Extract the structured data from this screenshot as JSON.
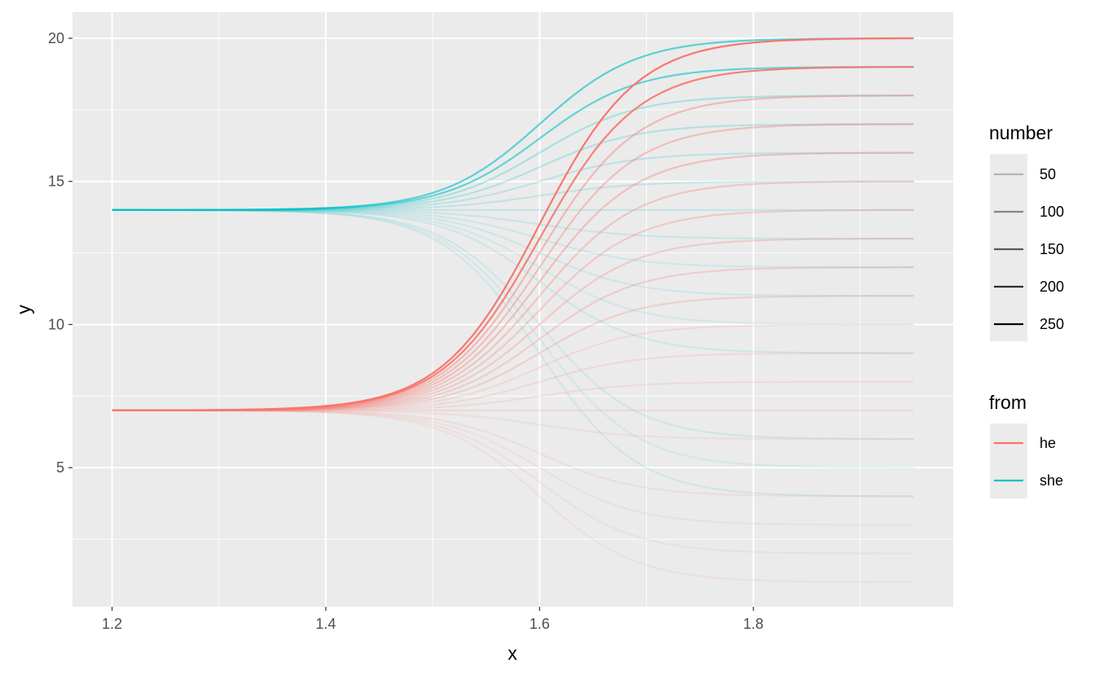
{
  "chart_data": {
    "type": "line",
    "title": "",
    "xlabel": "x",
    "ylabel": "y",
    "xlim": [
      1.163,
      1.987
    ],
    "ylim": [
      0.14,
      20.91
    ],
    "x_ticks": [
      1.2,
      1.4,
      1.6,
      1.8
    ],
    "x_tick_labels": [
      "1.2",
      "1.4",
      "1.6",
      "1.8"
    ],
    "y_ticks": [
      5,
      10,
      15,
      20
    ],
    "y_tick_labels": [
      "5",
      "10",
      "15",
      "20"
    ],
    "grid": true,
    "curve": {
      "form": "sigmoid",
      "x_start": 1.2,
      "x_end": 1.95,
      "midpoint": 1.6,
      "steepness": 22
    },
    "legend_number": {
      "title": "number",
      "position": "right",
      "items": [
        {
          "label": "50",
          "value": 50
        },
        {
          "label": "100",
          "value": 100
        },
        {
          "label": "150",
          "value": 150
        },
        {
          "label": "200",
          "value": 200
        },
        {
          "label": "250",
          "value": 250
        }
      ]
    },
    "legend_from": {
      "title": "from",
      "position": "right",
      "items": [
        {
          "label": "he",
          "color": "#F8766D"
        },
        {
          "label": "she",
          "color": "#00BFC4"
        }
      ]
    },
    "series": [
      {
        "from": "he",
        "start": 7,
        "end": 20,
        "number": 250
      },
      {
        "from": "he",
        "start": 7,
        "end": 19,
        "number": 230
      },
      {
        "from": "he",
        "start": 7,
        "end": 18,
        "number": 100
      },
      {
        "from": "he",
        "start": 7,
        "end": 17,
        "number": 90
      },
      {
        "from": "he",
        "start": 7,
        "end": 16,
        "number": 85
      },
      {
        "from": "he",
        "start": 7,
        "end": 15,
        "number": 75
      },
      {
        "from": "he",
        "start": 7,
        "end": 14,
        "number": 65
      },
      {
        "from": "he",
        "start": 7,
        "end": 13,
        "number": 60
      },
      {
        "from": "he",
        "start": 7,
        "end": 12,
        "number": 55
      },
      {
        "from": "he",
        "start": 7,
        "end": 11,
        "number": 50
      },
      {
        "from": "he",
        "start": 7,
        "end": 10,
        "number": 30
      },
      {
        "from": "he",
        "start": 7,
        "end": 9,
        "number": 30
      },
      {
        "from": "he",
        "start": 7,
        "end": 8,
        "number": 25
      },
      {
        "from": "he",
        "start": 7,
        "end": 7,
        "number": 25
      },
      {
        "from": "he",
        "start": 7,
        "end": 6,
        "number": 20
      },
      {
        "from": "he",
        "start": 7,
        "end": 4,
        "number": 20
      },
      {
        "from": "he",
        "start": 7,
        "end": 3,
        "number": 15
      },
      {
        "from": "he",
        "start": 7,
        "end": 2,
        "number": 15
      },
      {
        "from": "he",
        "start": 7,
        "end": 1,
        "number": 15
      },
      {
        "from": "she",
        "start": 14,
        "end": 20,
        "number": 150
      },
      {
        "from": "she",
        "start": 14,
        "end": 19,
        "number": 140
      },
      {
        "from": "she",
        "start": 14,
        "end": 18,
        "number": 60
      },
      {
        "from": "she",
        "start": 14,
        "end": 17,
        "number": 50
      },
      {
        "from": "she",
        "start": 14,
        "end": 16,
        "number": 40
      },
      {
        "from": "she",
        "start": 14,
        "end": 15,
        "number": 35
      },
      {
        "from": "she",
        "start": 14,
        "end": 14,
        "number": 30
      },
      {
        "from": "she",
        "start": 14,
        "end": 13,
        "number": 25
      },
      {
        "from": "she",
        "start": 14,
        "end": 12,
        "number": 20
      },
      {
        "from": "she",
        "start": 14,
        "end": 11,
        "number": 20
      },
      {
        "from": "she",
        "start": 14,
        "end": 10,
        "number": 15
      },
      {
        "from": "she",
        "start": 14,
        "end": 9,
        "number": 20
      },
      {
        "from": "she",
        "start": 14,
        "end": 6,
        "number": 20
      },
      {
        "from": "she",
        "start": 14,
        "end": 5,
        "number": 15
      },
      {
        "from": "she",
        "start": 14,
        "end": 4,
        "number": 20
      }
    ]
  }
}
